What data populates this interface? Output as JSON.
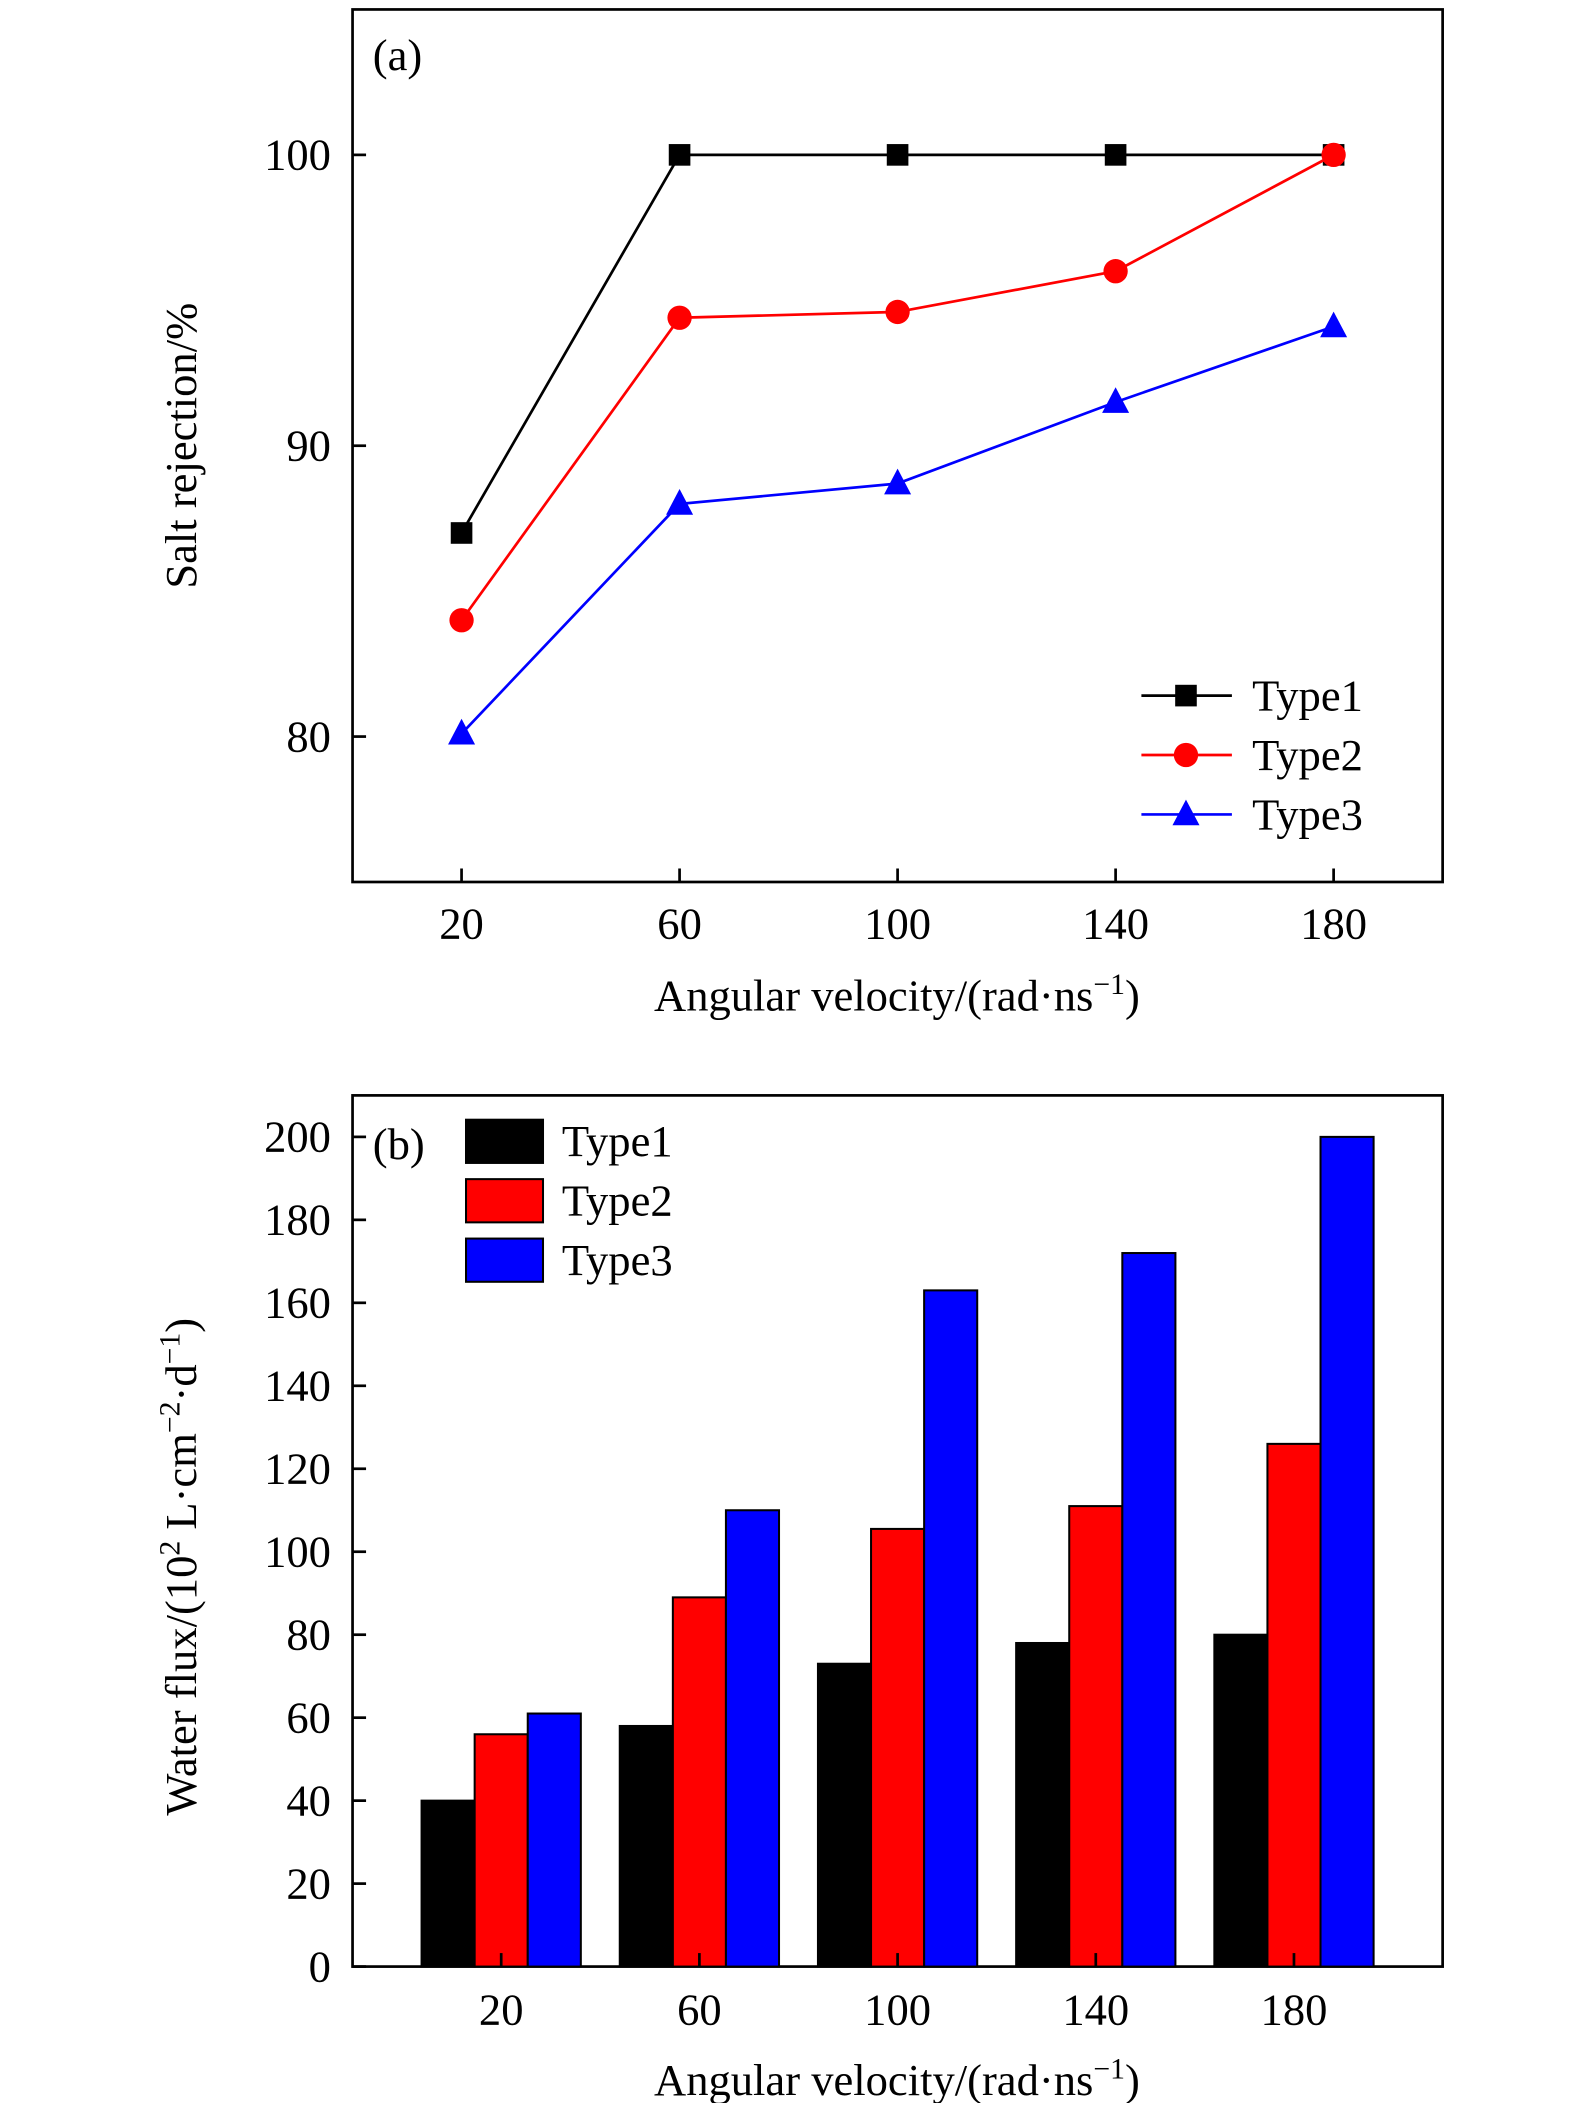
{
  "chart_data": [
    {
      "type": "line",
      "panel_label": "(a)",
      "xlabel": "Angular velocity/(rad·ns",
      "xlabel_sup": "−1",
      "xlabel_end": ")",
      "ylabel": "Salt rejection/%",
      "x": [
        20,
        60,
        100,
        140,
        180
      ],
      "xlim": [
        0,
        200
      ],
      "ylim": [
        75,
        105
      ],
      "xticks": [
        "20",
        "60",
        "100",
        "140",
        "180"
      ],
      "yticks": [
        "80",
        "90",
        "100"
      ],
      "legend_position": "bottom-right",
      "grid": false,
      "series": [
        {
          "name": "Type1",
          "marker": "square",
          "color": "#000000",
          "values": [
            87,
            100,
            100,
            100,
            100
          ]
        },
        {
          "name": "Type2",
          "marker": "circle",
          "color": "#ff0000",
          "values": [
            84,
            94.4,
            94.6,
            96,
            100
          ]
        },
        {
          "name": "Type3",
          "marker": "triangle",
          "color": "#0000ff",
          "values": [
            80.1,
            88,
            88.7,
            91.5,
            94.1
          ]
        }
      ]
    },
    {
      "type": "bar",
      "panel_label": "(b)",
      "xlabel": "Angular velocity/(rad·ns",
      "xlabel_sup": "−1",
      "xlabel_end": ")",
      "ylabel": "Water flux/(10",
      "ylabel_sup1": "2",
      "ylabel_mid": " L·cm",
      "ylabel_sup2": "−2",
      "ylabel_mid2": "·d",
      "ylabel_sup3": "−1",
      "ylabel_end": ")",
      "categories": [
        "20",
        "60",
        "100",
        "140",
        "180"
      ],
      "ylim": [
        0,
        210
      ],
      "yticks": [
        "0",
        "20",
        "40",
        "60",
        "80",
        "100",
        "120",
        "140",
        "160",
        "180",
        "200"
      ],
      "legend_position": "top-left",
      "grid": false,
      "series": [
        {
          "name": "Type1",
          "color": "#000000",
          "values": [
            40,
            58,
            73,
            78,
            80
          ]
        },
        {
          "name": "Type2",
          "color": "#ff0000",
          "values": [
            56,
            89,
            105.5,
            111,
            126
          ]
        },
        {
          "name": "Type3",
          "color": "#0000ff",
          "values": [
            61,
            110,
            163,
            172,
            200
          ]
        }
      ]
    }
  ]
}
